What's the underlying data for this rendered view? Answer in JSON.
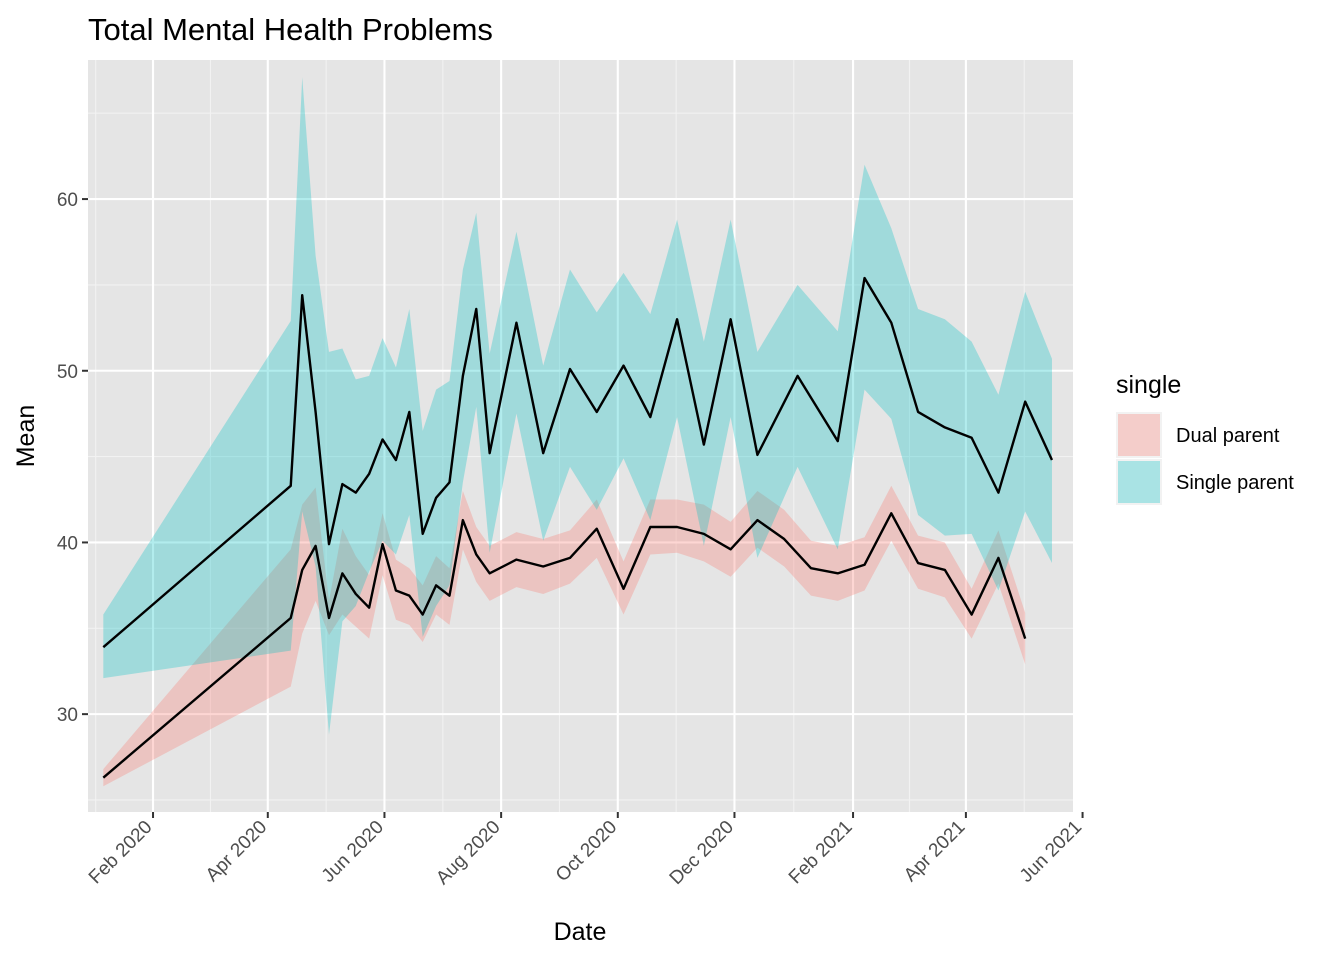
{
  "chart_data": {
    "type": "line",
    "title": "Total Mental Health Problems",
    "xlabel": "Date",
    "ylabel": "Mean",
    "x_axis_type": "date",
    "xlim": [
      "2019-12-29",
      "2021-05-27"
    ],
    "ylim": [
      24.3,
      68.1
    ],
    "x_ticks": [
      {
        "date": "2020-02-01",
        "label": "Feb 2020"
      },
      {
        "date": "2020-04-01",
        "label": "Apr 2020"
      },
      {
        "date": "2020-06-01",
        "label": "Jun 2020"
      },
      {
        "date": "2020-08-01",
        "label": "Aug 2020"
      },
      {
        "date": "2020-10-01",
        "label": "Oct 2020"
      },
      {
        "date": "2020-12-01",
        "label": "Dec 2020"
      },
      {
        "date": "2021-02-01",
        "label": "Feb 2021"
      },
      {
        "date": "2021-04-01",
        "label": "Apr 2021"
      },
      {
        "date": "2021-06-01",
        "label": "Jun 2021"
      }
    ],
    "y_ticks": [
      30,
      40,
      50,
      60
    ],
    "grid": true,
    "x_tick_label_angle": -45,
    "legend": {
      "title": "single",
      "position": "right",
      "entries": [
        "Dual parent",
        "Single parent"
      ]
    },
    "line_color": "#000000",
    "panel_background": "#e5e5e5",
    "series": [
      {
        "name": "Dual parent",
        "fill_color": "#f8766d",
        "points": [
          {
            "x": "2020-01-06",
            "y": 26.3,
            "lo": 25.8,
            "hi": 26.8
          },
          {
            "x": "2020-04-13",
            "y": 35.6,
            "lo": 31.6,
            "hi": 39.6
          },
          {
            "x": "2020-04-19",
            "y": 38.4,
            "lo": 34.7,
            "hi": 42.2
          },
          {
            "x": "2020-04-26",
            "y": 39.8,
            "lo": 36.6,
            "hi": 43.2
          },
          {
            "x": "2020-05-03",
            "y": 35.6,
            "lo": 34.6,
            "hi": 36.6
          },
          {
            "x": "2020-05-10",
            "y": 38.2,
            "lo": 35.8,
            "hi": 40.8
          },
          {
            "x": "2020-05-17",
            "y": 37.0,
            "lo": 35.1,
            "hi": 39.2
          },
          {
            "x": "2020-05-24",
            "y": 36.2,
            "lo": 34.4,
            "hi": 38.1
          },
          {
            "x": "2020-05-31",
            "y": 39.9,
            "lo": 38.1,
            "hi": 41.7
          },
          {
            "x": "2020-06-07",
            "y": 37.2,
            "lo": 35.5,
            "hi": 39.0
          },
          {
            "x": "2020-06-14",
            "y": 36.9,
            "lo": 35.2,
            "hi": 38.5
          },
          {
            "x": "2020-06-21",
            "y": 35.8,
            "lo": 34.2,
            "hi": 37.5
          },
          {
            "x": "2020-06-28",
            "y": 37.5,
            "lo": 35.8,
            "hi": 39.2
          },
          {
            "x": "2020-07-05",
            "y": 36.9,
            "lo": 35.2,
            "hi": 38.5
          },
          {
            "x": "2020-07-12",
            "y": 41.3,
            "lo": 39.6,
            "hi": 43.0
          },
          {
            "x": "2020-07-19",
            "y": 39.3,
            "lo": 37.7,
            "hi": 40.9
          },
          {
            "x": "2020-07-26",
            "y": 38.2,
            "lo": 36.6,
            "hi": 39.8
          },
          {
            "x": "2020-08-09",
            "y": 39.0,
            "lo": 37.4,
            "hi": 40.6
          },
          {
            "x": "2020-08-23",
            "y": 38.6,
            "lo": 37.0,
            "hi": 40.2
          },
          {
            "x": "2020-09-06",
            "y": 39.1,
            "lo": 37.6,
            "hi": 40.7
          },
          {
            "x": "2020-09-20",
            "y": 40.8,
            "lo": 39.1,
            "hi": 42.5
          },
          {
            "x": "2020-10-04",
            "y": 37.3,
            "lo": 35.8,
            "hi": 38.9
          },
          {
            "x": "2020-10-18",
            "y": 40.9,
            "lo": 39.3,
            "hi": 42.5
          },
          {
            "x": "2020-11-01",
            "y": 40.9,
            "lo": 39.4,
            "hi": 42.5
          },
          {
            "x": "2020-11-15",
            "y": 40.5,
            "lo": 38.9,
            "hi": 42.2
          },
          {
            "x": "2020-11-29",
            "y": 39.6,
            "lo": 38.0,
            "hi": 41.2
          },
          {
            "x": "2020-12-13",
            "y": 41.3,
            "lo": 39.7,
            "hi": 43.0
          },
          {
            "x": "2020-12-27",
            "y": 40.2,
            "lo": 38.6,
            "hi": 41.9
          },
          {
            "x": "2021-01-10",
            "y": 38.5,
            "lo": 36.9,
            "hi": 40.1
          },
          {
            "x": "2021-01-24",
            "y": 38.2,
            "lo": 36.6,
            "hi": 39.8
          },
          {
            "x": "2021-02-07",
            "y": 38.7,
            "lo": 37.2,
            "hi": 40.3
          },
          {
            "x": "2021-02-21",
            "y": 41.7,
            "lo": 40.1,
            "hi": 43.3
          },
          {
            "x": "2021-03-07",
            "y": 38.8,
            "lo": 37.3,
            "hi": 40.4
          },
          {
            "x": "2021-03-21",
            "y": 38.4,
            "lo": 36.8,
            "hi": 40.0
          },
          {
            "x": "2021-04-04",
            "y": 35.8,
            "lo": 34.4,
            "hi": 37.3
          },
          {
            "x": "2021-04-18",
            "y": 39.1,
            "lo": 37.6,
            "hi": 40.7
          },
          {
            "x": "2021-05-02",
            "y": 34.4,
            "lo": 32.9,
            "hi": 35.9
          }
        ]
      },
      {
        "name": "Single parent",
        "fill_color": "#00bfc4",
        "points": [
          {
            "x": "2020-01-06",
            "y": 33.9,
            "lo": 32.1,
            "hi": 35.8
          },
          {
            "x": "2020-04-13",
            "y": 43.3,
            "lo": 33.7,
            "hi": 52.9
          },
          {
            "x": "2020-04-19",
            "y": 54.4,
            "lo": 41.8,
            "hi": 67.1
          },
          {
            "x": "2020-04-26",
            "y": 47.6,
            "lo": 38.6,
            "hi": 56.7
          },
          {
            "x": "2020-05-03",
            "y": 39.9,
            "lo": 28.8,
            "hi": 51.1
          },
          {
            "x": "2020-05-10",
            "y": 43.4,
            "lo": 35.4,
            "hi": 51.3
          },
          {
            "x": "2020-05-17",
            "y": 42.9,
            "lo": 36.3,
            "hi": 49.5
          },
          {
            "x": "2020-05-24",
            "y": 44.0,
            "lo": 38.3,
            "hi": 49.7
          },
          {
            "x": "2020-05-31",
            "y": 46.0,
            "lo": 40.1,
            "hi": 51.9
          },
          {
            "x": "2020-06-07",
            "y": 44.8,
            "lo": 39.3,
            "hi": 50.2
          },
          {
            "x": "2020-06-14",
            "y": 47.6,
            "lo": 41.6,
            "hi": 53.6
          },
          {
            "x": "2020-06-21",
            "y": 40.5,
            "lo": 34.5,
            "hi": 46.5
          },
          {
            "x": "2020-06-28",
            "y": 42.6,
            "lo": 36.3,
            "hi": 48.9
          },
          {
            "x": "2020-07-05",
            "y": 43.5,
            "lo": 37.5,
            "hi": 49.4
          },
          {
            "x": "2020-07-12",
            "y": 49.7,
            "lo": 43.5,
            "hi": 55.9
          },
          {
            "x": "2020-07-19",
            "y": 53.6,
            "lo": 47.9,
            "hi": 59.2
          },
          {
            "x": "2020-07-26",
            "y": 45.2,
            "lo": 39.4,
            "hi": 51.0
          },
          {
            "x": "2020-08-09",
            "y": 52.8,
            "lo": 47.5,
            "hi": 58.1
          },
          {
            "x": "2020-08-23",
            "y": 45.2,
            "lo": 40.1,
            "hi": 50.3
          },
          {
            "x": "2020-09-06",
            "y": 50.1,
            "lo": 44.4,
            "hi": 55.9
          },
          {
            "x": "2020-09-20",
            "y": 47.6,
            "lo": 41.9,
            "hi": 53.4
          },
          {
            "x": "2020-10-04",
            "y": 50.3,
            "lo": 44.9,
            "hi": 55.7
          },
          {
            "x": "2020-10-18",
            "y": 47.3,
            "lo": 41.3,
            "hi": 53.3
          },
          {
            "x": "2020-11-01",
            "y": 53.0,
            "lo": 47.3,
            "hi": 58.8
          },
          {
            "x": "2020-11-15",
            "y": 45.7,
            "lo": 39.8,
            "hi": 51.7
          },
          {
            "x": "2020-11-29",
            "y": 53.0,
            "lo": 47.3,
            "hi": 58.8
          },
          {
            "x": "2020-12-13",
            "y": 45.1,
            "lo": 39.1,
            "hi": 51.1
          },
          {
            "x": "2021-01-03",
            "y": 49.7,
            "lo": 44.4,
            "hi": 55.0
          },
          {
            "x": "2021-01-24",
            "y": 45.9,
            "lo": 39.6,
            "hi": 52.3
          },
          {
            "x": "2021-02-07",
            "y": 55.4,
            "lo": 48.9,
            "hi": 62.0
          },
          {
            "x": "2021-02-21",
            "y": 52.8,
            "lo": 47.2,
            "hi": 58.3
          },
          {
            "x": "2021-03-07",
            "y": 47.6,
            "lo": 41.6,
            "hi": 53.6
          },
          {
            "x": "2021-03-21",
            "y": 46.7,
            "lo": 40.4,
            "hi": 53.0
          },
          {
            "x": "2021-04-04",
            "y": 46.1,
            "lo": 40.5,
            "hi": 51.7
          },
          {
            "x": "2021-04-18",
            "y": 42.9,
            "lo": 37.2,
            "hi": 48.6
          },
          {
            "x": "2021-05-02",
            "y": 48.2,
            "lo": 41.8,
            "hi": 54.6
          },
          {
            "x": "2021-05-16",
            "y": 44.8,
            "lo": 38.8,
            "hi": 50.7
          }
        ]
      }
    ]
  }
}
